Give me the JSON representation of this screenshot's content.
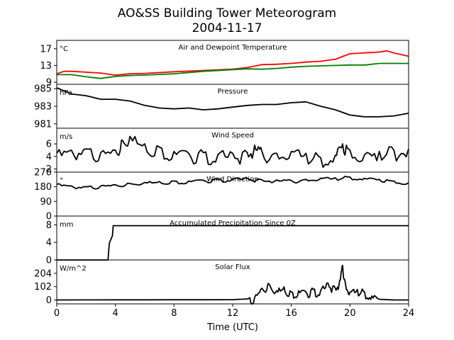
{
  "title_line1": "AO&SS Building Tower Meteorogram",
  "title_line2": "2004-11-17",
  "xlabel": "Time (UTC)",
  "x_ticks": [
    "0",
    "4",
    "8",
    "12",
    "16",
    "20",
    "24"
  ],
  "chart_data": [
    {
      "type": "line",
      "title": "Air and Dewpoint Temperature",
      "unit": "°C",
      "ylim": [
        8.5,
        19
      ],
      "yticks": [
        9,
        13,
        17
      ],
      "x": [
        0,
        0.5,
        1,
        2,
        3,
        4,
        5,
        6,
        8,
        10,
        12,
        13,
        14,
        15,
        16,
        17,
        18,
        19,
        20,
        21,
        22,
        22.5,
        23,
        24
      ],
      "series": [
        {
          "color": "#ff0000",
          "values": [
            11.0,
            11.6,
            11.6,
            11.4,
            11.2,
            10.7,
            11.0,
            11.1,
            11.5,
            11.8,
            12.1,
            12.5,
            13.2,
            13.3,
            13.5,
            13.8,
            14.0,
            14.5,
            15.8,
            16.0,
            16.2,
            16.5,
            16.0,
            15.2
          ]
        },
        {
          "color": "#008000",
          "values": [
            10.8,
            10.8,
            10.8,
            10.3,
            9.9,
            10.4,
            10.6,
            10.7,
            11.0,
            11.6,
            12.0,
            12.2,
            12.1,
            12.3,
            12.6,
            12.8,
            12.9,
            13.0,
            13.1,
            13.1,
            13.5,
            13.5,
            13.5,
            13.5
          ]
        }
      ]
    },
    {
      "type": "line",
      "title": "Pressure",
      "unit": "hPa",
      "ylim": [
        980.5,
        985.5
      ],
      "yticks": [
        981,
        983,
        985
      ],
      "x": [
        0,
        1,
        2,
        3,
        4,
        5,
        6,
        7,
        8,
        9,
        10,
        11,
        12,
        13,
        14,
        15,
        16,
        17,
        18,
        19,
        20,
        21,
        22,
        23,
        24
      ],
      "series": [
        {
          "color": "#000000",
          "values": [
            985.1,
            984.4,
            984.2,
            983.8,
            983.8,
            983.6,
            983.1,
            982.8,
            982.7,
            982.8,
            982.6,
            982.7,
            982.9,
            983.1,
            983.2,
            983.2,
            983.4,
            983.5,
            983.0,
            982.6,
            982.0,
            981.8,
            981.8,
            981.9,
            982.2
          ]
        }
      ]
    },
    {
      "type": "line",
      "title": "Wind Speed",
      "unit": "m/s",
      "ylim": [
        1.5,
        8.5
      ],
      "yticks": [
        2,
        4,
        6
      ],
      "x": [
        0,
        1,
        2,
        3,
        4,
        4.5,
        5,
        6,
        7,
        8,
        9,
        10,
        11,
        12,
        13,
        13.5,
        14,
        15,
        16,
        17,
        18,
        19,
        19.5,
        20,
        21,
        22,
        23,
        24
      ],
      "series": [
        {
          "color": "#000000",
          "values": [
            4.5,
            5.0,
            5.2,
            4.6,
            5.0,
            6.5,
            7.2,
            6.0,
            5.5,
            4.8,
            4.5,
            4.6,
            4.3,
            4.5,
            4.6,
            5.8,
            4.8,
            4.5,
            4.8,
            4.5,
            3.8,
            4.2,
            6.0,
            5.0,
            4.3,
            4.8,
            5.0,
            5.2
          ]
        }
      ]
    },
    {
      "type": "line",
      "title": "Wind Direction",
      "unit": "°",
      "ylim": [
        0,
        270
      ],
      "yticks": [
        0,
        90,
        180,
        270
      ],
      "x": [
        0,
        1,
        2,
        3,
        4,
        5,
        6,
        7,
        8,
        9,
        10,
        11,
        12,
        13,
        14,
        15,
        16,
        17,
        18,
        19,
        20,
        21,
        22,
        23,
        24
      ],
      "series": [
        {
          "color": "#000000",
          "values": [
            195,
            185,
            180,
            185,
            192,
            200,
            207,
            212,
            215,
            215,
            220,
            225,
            228,
            232,
            222,
            222,
            218,
            225,
            232,
            235,
            240,
            232,
            225,
            215,
            205
          ]
        }
      ]
    },
    {
      "type": "line",
      "title": "Accumulated Precipitation Since 0Z",
      "unit": "mm",
      "ylim": [
        0,
        10
      ],
      "yticks": [
        0,
        4,
        8
      ],
      "x": [
        0,
        3.5,
        3.55,
        3.6,
        3.8,
        3.85,
        24
      ],
      "series": [
        {
          "color": "#000000",
          "values": [
            0,
            0,
            2.5,
            4.0,
            5.5,
            7.8,
            7.8
          ]
        }
      ]
    },
    {
      "type": "line",
      "title": "Solar Flux",
      "unit": "W/m^2",
      "ylim": [
        -30,
        306
      ],
      "yticks": [
        0,
        102,
        204
      ],
      "x": [
        0,
        12,
        13,
        13.5,
        14,
        14.5,
        15,
        15.5,
        16,
        16.5,
        17,
        17.5,
        18,
        18.5,
        19,
        19.3,
        19.5,
        19.7,
        20,
        20.5,
        21,
        21.5,
        22,
        23,
        24
      ],
      "series": [
        {
          "color": "#000000",
          "values": [
            0,
            2,
            8,
            20,
            90,
            120,
            70,
            100,
            60,
            70,
            60,
            80,
            70,
            130,
            90,
            150,
            265,
            120,
            60,
            80,
            60,
            30,
            5,
            0,
            0
          ]
        }
      ]
    }
  ]
}
